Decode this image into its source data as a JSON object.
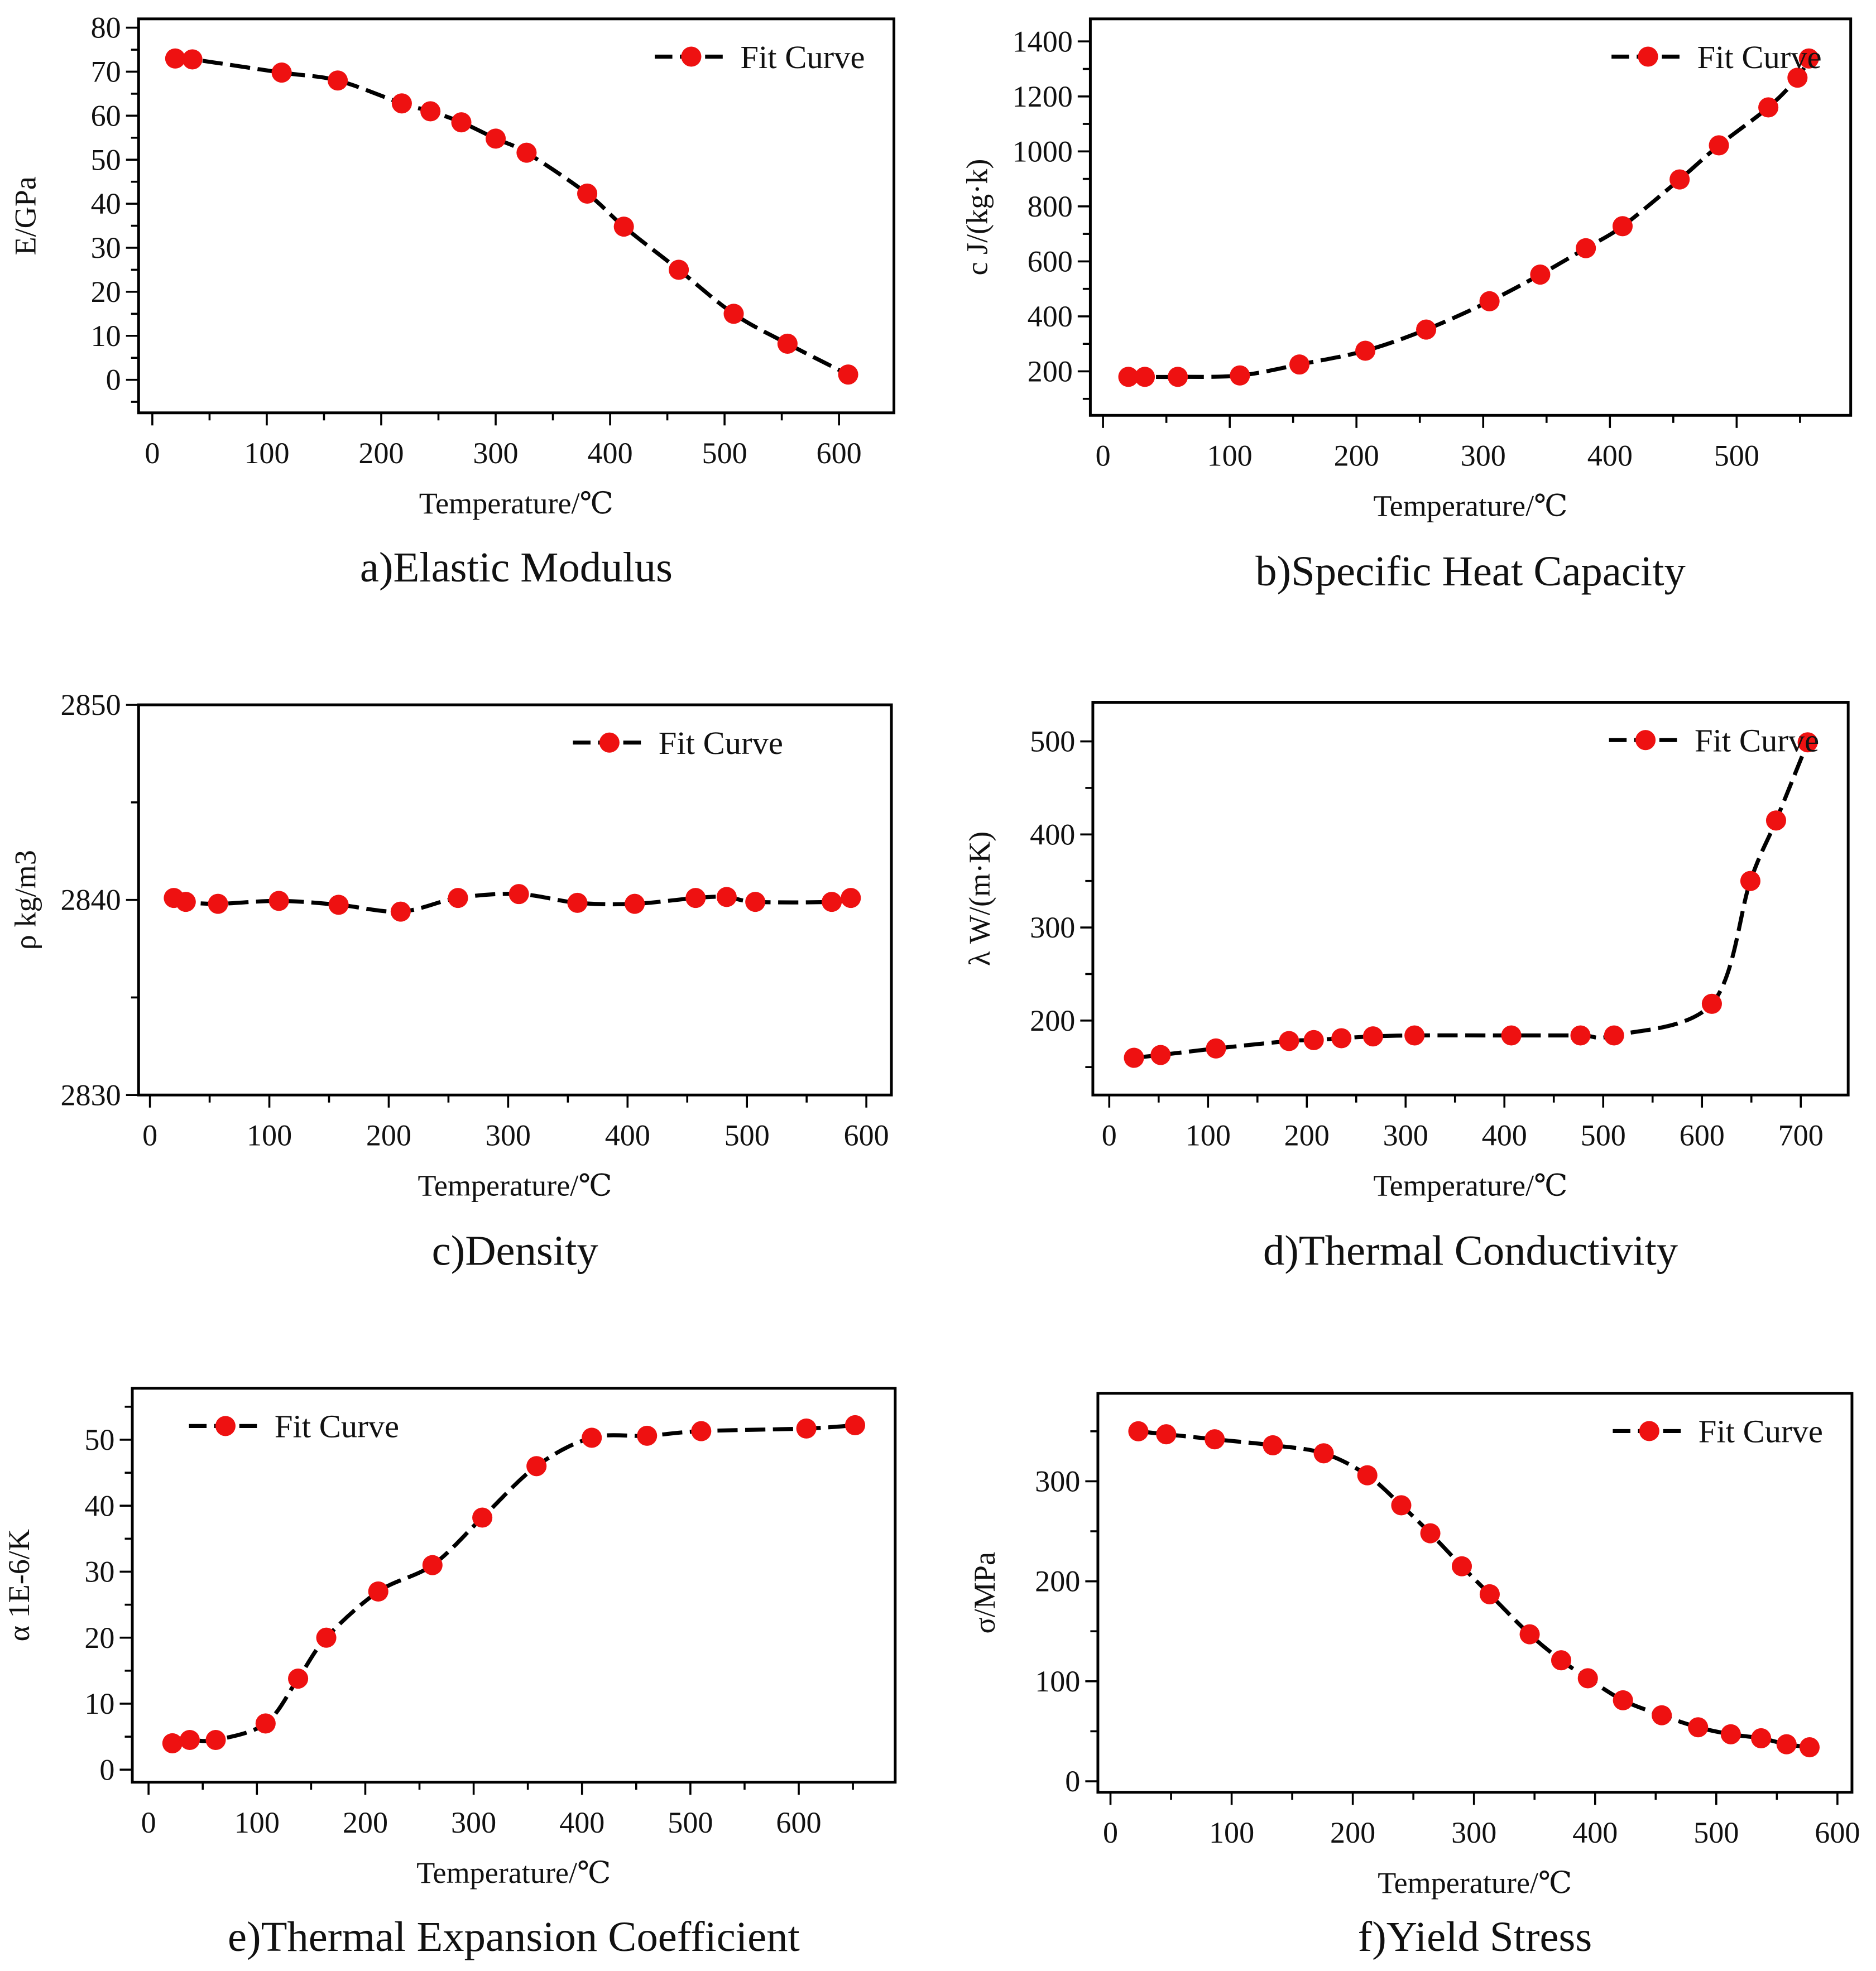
{
  "colors": {
    "marker": "#ee1111",
    "line": "#000000",
    "axis": "#000000"
  },
  "chart_data": [
    {
      "type": "line",
      "caption": "a)Elastic Modulus",
      "xlabel": "Temperature/℃",
      "ylabel": "E/GPa",
      "xlim": [
        -12,
        648
      ],
      "ylim": [
        -7.5,
        82
      ],
      "xticks": [
        0,
        100,
        200,
        300,
        400,
        500,
        600
      ],
      "xminor": 50,
      "yticks": [
        0,
        10,
        20,
        30,
        40,
        50,
        60,
        70,
        80
      ],
      "yminor": 5,
      "legend": {
        "label": "Fit Curve",
        "placement": "top-right"
      },
      "grid": false,
      "series": [
        {
          "name": "Fit Curve",
          "points": [
            [
              20,
              73
            ],
            [
              35,
              72.8
            ],
            [
              113,
              69.8
            ],
            [
              162,
              68
            ],
            [
              218,
              62.8
            ],
            [
              243,
              61
            ],
            [
              270,
              58.5
            ],
            [
              300,
              54.8
            ],
            [
              327,
              51.6
            ],
            [
              380,
              42.3
            ],
            [
              412,
              34.8
            ],
            [
              460,
              25
            ],
            [
              508,
              15
            ],
            [
              555,
              8.2
            ],
            [
              608,
              1.2
            ]
          ]
        }
      ]
    },
    {
      "type": "line",
      "caption": "b)Specific Heat Capacity",
      "xlabel": "Temperature/℃",
      "ylabel": "c J/(kg·k)",
      "xlim": [
        -10,
        590
      ],
      "ylim": [
        40,
        1482
      ],
      "xticks": [
        0,
        100,
        200,
        300,
        400,
        500
      ],
      "xminor": 50,
      "yticks": [
        200,
        400,
        600,
        800,
        1000,
        1200,
        1400
      ],
      "yminor": 100,
      "legend": {
        "label": "Fit Curve",
        "placement": "top-right"
      },
      "grid": false,
      "series": [
        {
          "name": "Fit Curve",
          "points": [
            [
              20,
              180
            ],
            [
              33,
              180
            ],
            [
              59,
              180
            ],
            [
              108,
              185
            ],
            [
              155,
              225
            ],
            [
              207,
              275
            ],
            [
              255,
              352
            ],
            [
              305,
              455
            ],
            [
              345,
              552
            ],
            [
              381,
              648
            ],
            [
              410,
              728
            ],
            [
              455,
              898
            ],
            [
              486,
              1022
            ],
            [
              525,
              1160
            ],
            [
              548,
              1268
            ],
            [
              557,
              1338
            ]
          ]
        }
      ]
    },
    {
      "type": "line",
      "caption": "c)Density",
      "xlabel": "Temperature/℃",
      "ylabel": "ρ kg/m3",
      "xlim": [
        -9.5,
        621
      ],
      "ylim": [
        2830,
        2850
      ],
      "xticks": [
        0,
        100,
        200,
        300,
        400,
        500,
        600
      ],
      "xminor": 50,
      "yticks": [
        2830,
        2840,
        2850
      ],
      "yminor": 5,
      "legend": {
        "label": "Fit Curve",
        "placement": "top-center"
      },
      "grid": false,
      "series": [
        {
          "name": "Fit Curve",
          "points": [
            [
              20,
              2840.1
            ],
            [
              30,
              2839.9
            ],
            [
              57,
              2839.8
            ],
            [
              108,
              2839.95
            ],
            [
              158,
              2839.75
            ],
            [
              210,
              2839.4
            ],
            [
              258,
              2840.1
            ],
            [
              309,
              2840.3
            ],
            [
              358,
              2839.85
            ],
            [
              406,
              2839.8
            ],
            [
              457,
              2840.1
            ],
            [
              483,
              2840.15
            ],
            [
              507,
              2839.9
            ],
            [
              571,
              2839.9
            ],
            [
              587,
              2840.1
            ]
          ]
        }
      ]
    },
    {
      "type": "line",
      "caption": "d)Thermal Conductivity",
      "xlabel": "Temperature/℃",
      "ylabel": "λ W/(m·K)",
      "xlim": [
        -16.6,
        748
      ],
      "ylim": [
        120,
        542
      ],
      "xticks": [
        0,
        100,
        200,
        300,
        400,
        500,
        600,
        700
      ],
      "xminor": 50,
      "yticks": [
        200,
        300,
        400,
        500
      ],
      "yminor": 50,
      "legend": {
        "label": "Fit Curve",
        "placement": "top-right"
      },
      "grid": false,
      "series": [
        {
          "name": "Fit Curve",
          "points": [
            [
              25,
              160
            ],
            [
              52,
              163
            ],
            [
              108,
              170
            ],
            [
              182,
              178
            ],
            [
              207,
              179
            ],
            [
              235,
              181
            ],
            [
              267,
              183
            ],
            [
              309,
              184
            ],
            [
              407,
              184
            ],
            [
              477,
              184
            ],
            [
              511,
              184
            ],
            [
              610,
              218
            ],
            [
              649,
              350
            ],
            [
              675,
              415
            ],
            [
              707,
              499
            ]
          ]
        }
      ]
    },
    {
      "type": "line",
      "caption": "e)Thermal Expansion Coefficient",
      "xlabel": "Temperature/℃",
      "ylabel": "α 1E-6/K",
      "xlim": [
        -15,
        689
      ],
      "ylim": [
        -1.9,
        57.8
      ],
      "xticks": [
        0,
        100,
        200,
        300,
        400,
        500,
        600
      ],
      "xminor": 50,
      "yticks": [
        0,
        10,
        20,
        30,
        40,
        50
      ],
      "yminor": 5,
      "legend": {
        "label": "Fit Curve",
        "placement": "top-left"
      },
      "grid": false,
      "series": [
        {
          "name": "Fit Curve",
          "points": [
            [
              22,
              4
            ],
            [
              38,
              4.5
            ],
            [
              62,
              4.5
            ],
            [
              108,
              7
            ],
            [
              138,
              13.8
            ],
            [
              164,
              20
            ],
            [
              212,
              27
            ],
            [
              262,
              31
            ],
            [
              308,
              38.2
            ],
            [
              358,
              46
            ],
            [
              409,
              50.3
            ],
            [
              460,
              50.6
            ],
            [
              510,
              51.3
            ],
            [
              607,
              51.7
            ],
            [
              652,
              52.2
            ]
          ]
        }
      ]
    },
    {
      "type": "line",
      "caption": "f)Yield Stress",
      "xlabel": "Temperature/℃",
      "ylabel": "σ/MPa",
      "xlim": [
        -10.4,
        612
      ],
      "ylim": [
        -11,
        388
      ],
      "xticks": [
        0,
        100,
        200,
        300,
        400,
        500,
        600
      ],
      "xminor": 50,
      "yticks": [
        0,
        100,
        200,
        300
      ],
      "yminor": 50,
      "legend": {
        "label": "Fit Curve",
        "placement": "top-right"
      },
      "grid": false,
      "series": [
        {
          "name": "Fit Curve",
          "points": [
            [
              23,
              350
            ],
            [
              46,
              347
            ],
            [
              86,
              342
            ],
            [
              134,
              336
            ],
            [
              176,
              328
            ],
            [
              212,
              306
            ],
            [
              240,
              276
            ],
            [
              264,
              248
            ],
            [
              290,
              215
            ],
            [
              313,
              187
            ],
            [
              346,
              147
            ],
            [
              372,
              121
            ],
            [
              394,
              103
            ],
            [
              423,
              81
            ],
            [
              455,
              66
            ],
            [
              485,
              54
            ],
            [
              512,
              47
            ],
            [
              537,
              43
            ],
            [
              558,
              37
            ],
            [
              577,
              34
            ]
          ]
        }
      ]
    }
  ]
}
